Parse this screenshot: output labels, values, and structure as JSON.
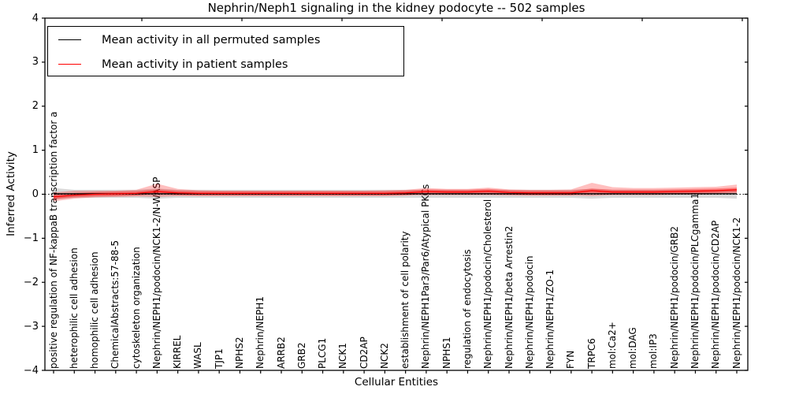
{
  "title": "Nephrin/Neph1 signaling in the kidney podocyte -- 502 samples",
  "legend": {
    "items": [
      {
        "label": "Mean activity in all permuted samples",
        "color": "#000000"
      },
      {
        "label": "Mean activity in patient samples",
        "color": "#ff0000"
      }
    ]
  },
  "axes": {
    "ylabel": "Inferred Activity",
    "xlabel": "Cellular Entities",
    "ytick_labels": [
      "4",
      "3",
      "2",
      "1",
      "0",
      "−1",
      "−2",
      "−3",
      "−4"
    ]
  },
  "chart_data": {
    "type": "line",
    "title": "Nephrin/Neph1 signaling in the kidney podocyte -- 502 samples",
    "xlabel": "Cellular Entities",
    "ylabel": "Inferred Activity",
    "ylim": [
      -4,
      4
    ],
    "yticks": [
      4,
      3,
      2,
      1,
      0,
      -1,
      -2,
      -3,
      -4
    ],
    "grid": false,
    "legend_position": "upper left",
    "zero_line": 0,
    "categories": [
      "positive regulation of NF-kappaB transcription factor a",
      "heterophilic cell adhesion",
      "homophilic cell adhesion",
      "ChemicalAbstracts:57-88-5",
      "cytoskeleton organization",
      "Nephrin/NEPH1/podocin/NCK1-2/N-WASP",
      "KIRREL",
      "WASL",
      "TJP1",
      "NPHS2",
      "Nephrin/NEPH1",
      "ARRB2",
      "GRB2",
      "PLCG1",
      "NCK1",
      "CD2AP",
      "NCK2",
      "establishment of cell polarity",
      "Nephrin/NEPH1Par3/Par6/Atypical PKCs",
      "NPHS1",
      "regulation of endocytosis",
      "Nephrin/NEPH1/podocin/Cholesterol",
      "Nephrin/NEPH1/beta Arrestin2",
      "Nephrin/NEPH1/podocin",
      "Nephrin/NEPH1/ZO-1",
      "FYN",
      "TRPC6",
      "mol:Ca2+",
      "mol:DAG",
      "mol:IP3",
      "Nephrin/NEPH1/podocin/GRB2",
      "Nephrin/NEPH1/podocin/PLCgamma1",
      "Nephrin/NEPH1/podocin/CD2AP",
      "Nephrin/NEPH1/podocin/NCK1-2"
    ],
    "series": [
      {
        "name": "Mean activity in all permuted samples",
        "color": "#000000",
        "values": [
          0.01,
          0.01,
          0.01,
          0.01,
          0.01,
          0.01,
          0.01,
          0.01,
          0.01,
          0.01,
          0.01,
          0.01,
          0.01,
          0.01,
          0.01,
          0.01,
          0.01,
          0.01,
          0.01,
          0.01,
          0.01,
          0.01,
          0.01,
          0.01,
          0.01,
          0.01,
          0.01,
          0.01,
          0.01,
          0.01,
          0.01,
          0.01,
          0.01,
          0.01
        ]
      },
      {
        "name": "Mean activity in patient samples",
        "color": "#ff0000",
        "values": [
          -0.06,
          -0.02,
          0.0,
          0.01,
          0.02,
          0.06,
          0.03,
          0.02,
          0.02,
          0.02,
          0.02,
          0.02,
          0.02,
          0.02,
          0.02,
          0.02,
          0.02,
          0.03,
          0.06,
          0.05,
          0.05,
          0.07,
          0.04,
          0.03,
          0.03,
          0.03,
          0.08,
          0.05,
          0.05,
          0.05,
          0.06,
          0.07,
          0.08,
          0.1
        ]
      }
    ],
    "bands": {
      "patient_outer_upper": [
        0.04,
        0.08,
        0.08,
        0.08,
        0.1,
        0.24,
        0.12,
        0.09,
        0.08,
        0.08,
        0.08,
        0.08,
        0.08,
        0.08,
        0.08,
        0.08,
        0.09,
        0.1,
        0.14,
        0.12,
        0.12,
        0.15,
        0.11,
        0.1,
        0.1,
        0.11,
        0.26,
        0.16,
        0.14,
        0.14,
        0.15,
        0.16,
        0.17,
        0.22
      ],
      "patient_outer_lower": [
        -0.16,
        -0.1,
        -0.07,
        -0.06,
        -0.05,
        -0.06,
        -0.04,
        -0.04,
        -0.04,
        -0.04,
        -0.04,
        -0.04,
        -0.04,
        -0.04,
        -0.04,
        -0.04,
        -0.04,
        -0.03,
        -0.02,
        -0.02,
        -0.02,
        -0.02,
        -0.03,
        -0.03,
        -0.03,
        -0.03,
        -0.04,
        -0.02,
        -0.02,
        -0.02,
        -0.01,
        -0.01,
        0.0,
        0.0
      ],
      "patient_inner_halfwidth": 0.05,
      "permuted_upper": [
        0.14,
        0.1,
        0.1,
        0.1,
        0.1,
        0.13,
        0.1,
        0.1,
        0.1,
        0.1,
        0.1,
        0.1,
        0.1,
        0.1,
        0.1,
        0.1,
        0.1,
        0.1,
        0.1,
        0.1,
        0.1,
        0.1,
        0.1,
        0.1,
        0.1,
        0.1,
        0.12,
        0.1,
        0.1,
        0.1,
        0.1,
        0.1,
        0.1,
        0.12
      ],
      "permuted_lower": [
        -0.12,
        -0.08,
        -0.08,
        -0.08,
        -0.08,
        -0.1,
        -0.08,
        -0.08,
        -0.08,
        -0.08,
        -0.08,
        -0.08,
        -0.08,
        -0.08,
        -0.08,
        -0.08,
        -0.08,
        -0.08,
        -0.08,
        -0.08,
        -0.08,
        -0.08,
        -0.08,
        -0.08,
        -0.08,
        -0.08,
        -0.1,
        -0.08,
        -0.08,
        -0.08,
        -0.08,
        -0.08,
        -0.08,
        -0.1
      ]
    }
  }
}
